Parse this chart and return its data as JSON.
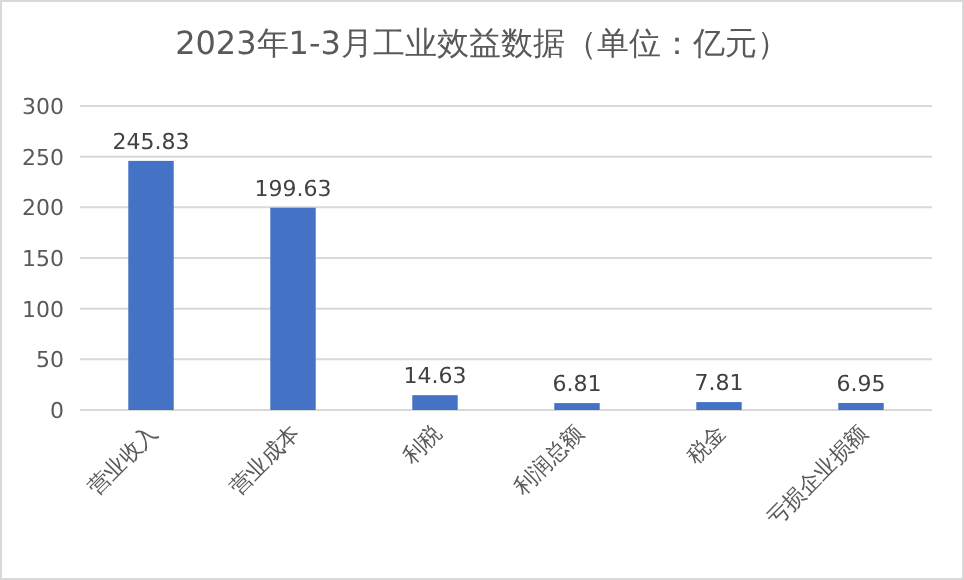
{
  "chart_data": {
    "type": "bar",
    "title": "2023年1-3月工业效益数据（单位：亿元）",
    "categories": [
      "营业收入",
      "营业成本",
      "利税",
      "利润总额",
      "税金",
      "亏损企业损额"
    ],
    "values": [
      245.83,
      199.63,
      14.63,
      6.81,
      7.81,
      6.95
    ],
    "color": "#4472c4",
    "ylim": [
      0,
      300
    ],
    "yticks": [
      0,
      50,
      100,
      150,
      200,
      250,
      300
    ],
    "grid": "y",
    "data_labels": true
  }
}
